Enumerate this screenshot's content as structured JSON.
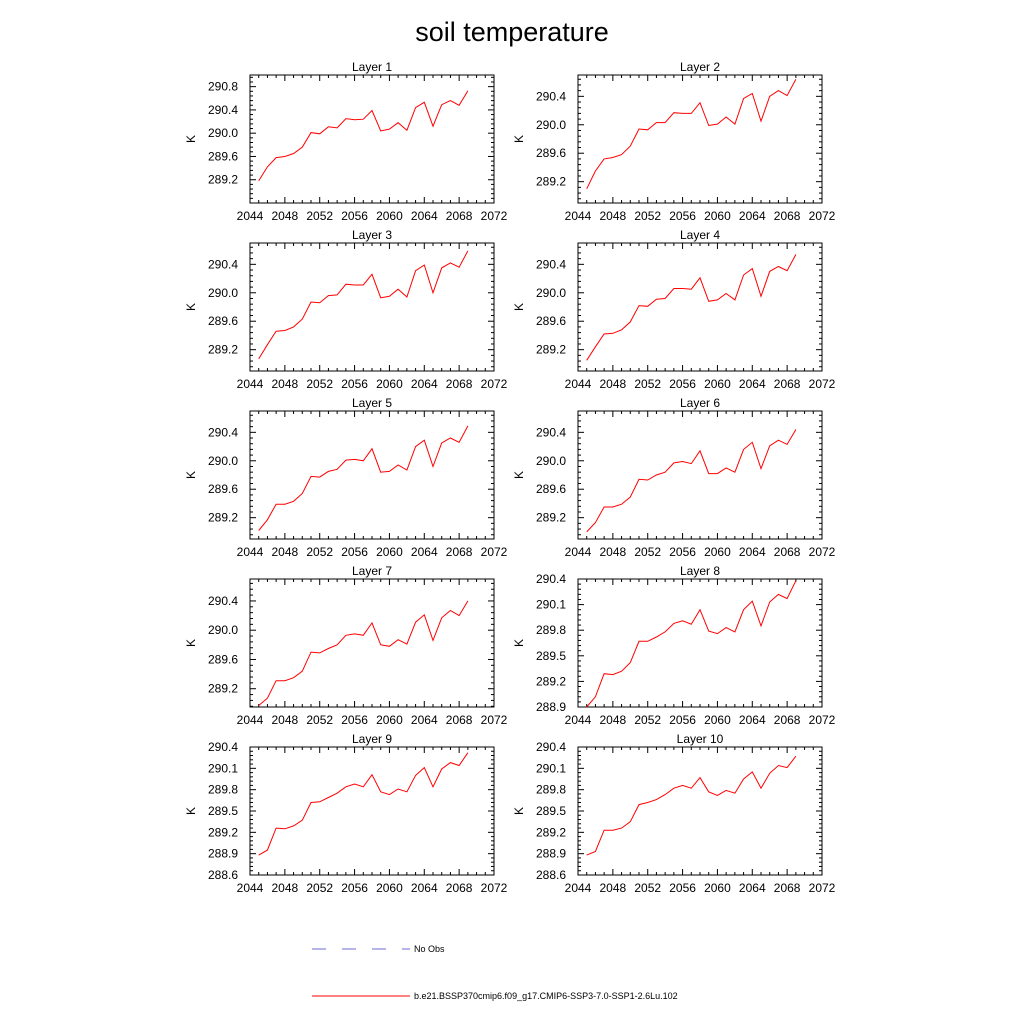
{
  "figure": {
    "title": "soil temperature",
    "legend": [
      {
        "label": "No Obs",
        "color": "#6b6bd6",
        "style": "dashed"
      },
      {
        "label": "b.e21.BSSP370cmip6.f09_g17.CMIP6-SSP3-7.0-SSP1-2.6Lu.102",
        "color": "#ff0000",
        "style": "solid"
      }
    ]
  },
  "chart_data": [
    {
      "type": "line",
      "title": "Layer 1",
      "ylabel": "K",
      "xlim": [
        2044,
        2072
      ],
      "xticks": [
        2044,
        2048,
        2052,
        2056,
        2060,
        2064,
        2068,
        2072
      ],
      "ylim": [
        288.8,
        291.0
      ],
      "yticks": [
        "289.2",
        "289.6",
        "290.0",
        "290.4",
        "290.8"
      ],
      "series": [
        {
          "color": "#ff0000",
          "x": [
            2045,
            2046,
            2047,
            2048,
            2049,
            2050,
            2051,
            2052,
            2053,
            2054,
            2055,
            2056,
            2057,
            2058,
            2059,
            2060,
            2061,
            2062,
            2063,
            2064,
            2065,
            2066,
            2067,
            2068,
            2069
          ],
          "y": [
            289.18,
            289.42,
            289.58,
            289.6,
            289.65,
            289.76,
            290.01,
            289.99,
            290.11,
            290.09,
            290.25,
            290.23,
            290.24,
            290.39,
            290.04,
            290.07,
            290.18,
            290.05,
            290.44,
            290.53,
            290.12,
            290.49,
            290.56,
            290.48,
            290.73
          ]
        }
      ]
    },
    {
      "type": "line",
      "title": "Layer 2",
      "ylabel": "K",
      "xlim": [
        2044,
        2072
      ],
      "xticks": [
        2044,
        2048,
        2052,
        2056,
        2060,
        2064,
        2068,
        2072
      ],
      "ylim": [
        288.9,
        290.7
      ],
      "yticks": [
        "289.2",
        "289.6",
        "290.0",
        "290.4"
      ],
      "series": [
        {
          "color": "#ff0000",
          "x": [
            2045,
            2046,
            2047,
            2048,
            2049,
            2050,
            2051,
            2052,
            2053,
            2054,
            2055,
            2056,
            2057,
            2058,
            2059,
            2060,
            2061,
            2062,
            2063,
            2064,
            2065,
            2066,
            2067,
            2068,
            2069
          ],
          "y": [
            289.1,
            289.35,
            289.52,
            289.54,
            289.58,
            289.7,
            289.94,
            289.93,
            290.03,
            290.03,
            290.17,
            290.16,
            290.16,
            290.31,
            289.99,
            290.01,
            290.11,
            290.01,
            290.37,
            290.44,
            290.05,
            290.4,
            290.48,
            290.41,
            290.64
          ]
        }
      ]
    },
    {
      "type": "line",
      "title": "Layer 3",
      "ylabel": "K",
      "xlim": [
        2044,
        2072
      ],
      "xticks": [
        2044,
        2048,
        2052,
        2056,
        2060,
        2064,
        2068,
        2072
      ],
      "ylim": [
        288.9,
        290.7
      ],
      "yticks": [
        "289.2",
        "289.6",
        "290.0",
        "290.4"
      ],
      "series": [
        {
          "color": "#ff0000",
          "x": [
            2045,
            2046,
            2047,
            2048,
            2049,
            2050,
            2051,
            2052,
            2053,
            2054,
            2055,
            2056,
            2057,
            2058,
            2059,
            2060,
            2061,
            2062,
            2063,
            2064,
            2065,
            2066,
            2067,
            2068,
            2069
          ],
          "y": [
            289.07,
            289.27,
            289.46,
            289.47,
            289.52,
            289.63,
            289.87,
            289.86,
            289.96,
            289.97,
            290.12,
            290.11,
            290.11,
            290.26,
            289.93,
            289.95,
            290.05,
            289.94,
            290.31,
            290.39,
            290.0,
            290.35,
            290.42,
            290.36,
            290.59
          ]
        }
      ]
    },
    {
      "type": "line",
      "title": "Layer 4",
      "ylabel": "K",
      "xlim": [
        2044,
        2072
      ],
      "xticks": [
        2044,
        2048,
        2052,
        2056,
        2060,
        2064,
        2068,
        2072
      ],
      "ylim": [
        288.9,
        290.7
      ],
      "yticks": [
        "289.2",
        "289.6",
        "290.0",
        "290.4"
      ],
      "series": [
        {
          "color": "#ff0000",
          "x": [
            2045,
            2046,
            2047,
            2048,
            2049,
            2050,
            2051,
            2052,
            2053,
            2054,
            2055,
            2056,
            2057,
            2058,
            2059,
            2060,
            2061,
            2062,
            2063,
            2064,
            2065,
            2066,
            2067,
            2068,
            2069
          ],
          "y": [
            289.05,
            289.24,
            289.42,
            289.43,
            289.48,
            289.59,
            289.82,
            289.81,
            289.91,
            289.92,
            290.06,
            290.06,
            290.05,
            290.21,
            289.88,
            289.9,
            289.99,
            289.9,
            290.25,
            290.34,
            289.95,
            290.3,
            290.37,
            290.31,
            290.54
          ]
        }
      ]
    },
    {
      "type": "line",
      "title": "Layer 5",
      "ylabel": "K",
      "xlim": [
        2044,
        2072
      ],
      "xticks": [
        2044,
        2048,
        2052,
        2056,
        2060,
        2064,
        2068,
        2072
      ],
      "ylim": [
        288.9,
        290.7
      ],
      "yticks": [
        "289.2",
        "289.6",
        "290.0",
        "290.4"
      ],
      "series": [
        {
          "color": "#ff0000",
          "x": [
            2045,
            2046,
            2047,
            2048,
            2049,
            2050,
            2051,
            2052,
            2053,
            2054,
            2055,
            2056,
            2057,
            2058,
            2059,
            2060,
            2061,
            2062,
            2063,
            2064,
            2065,
            2066,
            2067,
            2068,
            2069
          ],
          "y": [
            289.02,
            289.17,
            289.39,
            289.39,
            289.43,
            289.54,
            289.78,
            289.77,
            289.85,
            289.88,
            290.01,
            290.02,
            290.0,
            290.17,
            289.84,
            289.85,
            289.94,
            289.87,
            290.2,
            290.29,
            289.92,
            290.25,
            290.32,
            290.26,
            290.49
          ]
        }
      ]
    },
    {
      "type": "line",
      "title": "Layer 6",
      "ylabel": "K",
      "xlim": [
        2044,
        2072
      ],
      "xticks": [
        2044,
        2048,
        2052,
        2056,
        2060,
        2064,
        2068,
        2072
      ],
      "ylim": [
        288.9,
        290.7
      ],
      "yticks": [
        "289.2",
        "289.6",
        "290.0",
        "290.4"
      ],
      "series": [
        {
          "color": "#ff0000",
          "x": [
            2045,
            2046,
            2047,
            2048,
            2049,
            2050,
            2051,
            2052,
            2053,
            2054,
            2055,
            2056,
            2057,
            2058,
            2059,
            2060,
            2061,
            2062,
            2063,
            2064,
            2065,
            2066,
            2067,
            2068,
            2069
          ],
          "y": [
            289.0,
            289.13,
            289.35,
            289.35,
            289.39,
            289.49,
            289.74,
            289.73,
            289.8,
            289.84,
            289.97,
            289.99,
            289.96,
            290.14,
            289.82,
            289.82,
            289.9,
            289.84,
            290.16,
            290.26,
            289.89,
            290.21,
            290.29,
            290.23,
            290.44
          ]
        }
      ]
    },
    {
      "type": "line",
      "title": "Layer 7",
      "ylabel": "K",
      "xlim": [
        2044,
        2072
      ],
      "xticks": [
        2044,
        2048,
        2052,
        2056,
        2060,
        2064,
        2068,
        2072
      ],
      "ylim": [
        288.95,
        290.7
      ],
      "yticks": [
        "289.2",
        "289.6",
        "290.0",
        "290.4"
      ],
      "series": [
        {
          "color": "#ff0000",
          "x": [
            2045,
            2046,
            2047,
            2048,
            2049,
            2050,
            2051,
            2052,
            2053,
            2054,
            2055,
            2056,
            2057,
            2058,
            2059,
            2060,
            2061,
            2062,
            2063,
            2064,
            2065,
            2066,
            2067,
            2068,
            2069
          ],
          "y": [
            288.97,
            289.07,
            289.31,
            289.31,
            289.35,
            289.44,
            289.7,
            289.69,
            289.75,
            289.8,
            289.93,
            289.95,
            289.93,
            290.1,
            289.8,
            289.78,
            289.87,
            289.81,
            290.11,
            290.21,
            289.86,
            290.17,
            290.27,
            290.2,
            290.4
          ]
        }
      ]
    },
    {
      "type": "line",
      "title": "Layer 8",
      "ylabel": "K",
      "xlim": [
        2044,
        2072
      ],
      "xticks": [
        2044,
        2048,
        2052,
        2056,
        2060,
        2064,
        2068,
        2072
      ],
      "ylim": [
        288.9,
        290.4
      ],
      "yticks": [
        "288.9",
        "289.2",
        "289.5",
        "289.8",
        "290.1",
        "290.4"
      ],
      "series": [
        {
          "color": "#ff0000",
          "x": [
            2045,
            2046,
            2047,
            2048,
            2049,
            2050,
            2051,
            2052,
            2053,
            2054,
            2055,
            2056,
            2057,
            2058,
            2059,
            2060,
            2061,
            2062,
            2063,
            2064,
            2065,
            2066,
            2067,
            2068,
            2069
          ],
          "y": [
            288.9,
            289.02,
            289.29,
            289.28,
            289.32,
            289.42,
            289.67,
            289.67,
            289.72,
            289.78,
            289.88,
            289.91,
            289.87,
            290.04,
            289.79,
            289.76,
            289.83,
            289.78,
            290.04,
            290.14,
            289.85,
            290.13,
            290.22,
            290.17,
            290.38
          ]
        }
      ]
    },
    {
      "type": "line",
      "title": "Layer 9",
      "ylabel": "K",
      "xlim": [
        2044,
        2072
      ],
      "xticks": [
        2044,
        2048,
        2052,
        2056,
        2060,
        2064,
        2068,
        2072
      ],
      "ylim": [
        288.6,
        290.4
      ],
      "yticks": [
        "288.6",
        "288.9",
        "289.2",
        "289.5",
        "289.8",
        "290.1",
        "290.4"
      ],
      "series": [
        {
          "color": "#ff0000",
          "x": [
            2045,
            2046,
            2047,
            2048,
            2049,
            2050,
            2051,
            2052,
            2053,
            2054,
            2055,
            2056,
            2057,
            2058,
            2059,
            2060,
            2061,
            2062,
            2063,
            2064,
            2065,
            2066,
            2067,
            2068,
            2069
          ],
          "y": [
            288.88,
            288.95,
            289.26,
            289.25,
            289.29,
            289.37,
            289.62,
            289.63,
            289.69,
            289.75,
            289.84,
            289.88,
            289.84,
            290.01,
            289.77,
            289.73,
            289.81,
            289.77,
            290.0,
            290.11,
            289.84,
            290.09,
            290.18,
            290.14,
            290.32
          ]
        }
      ]
    },
    {
      "type": "line",
      "title": "Layer 10",
      "ylabel": "K",
      "xlim": [
        2044,
        2072
      ],
      "xticks": [
        2044,
        2048,
        2052,
        2056,
        2060,
        2064,
        2068,
        2072
      ],
      "ylim": [
        288.6,
        290.4
      ],
      "yticks": [
        "288.6",
        "288.9",
        "289.2",
        "289.5",
        "289.8",
        "290.1",
        "290.4"
      ],
      "series": [
        {
          "color": "#ff0000",
          "x": [
            2045,
            2046,
            2047,
            2048,
            2049,
            2050,
            2051,
            2052,
            2053,
            2054,
            2055,
            2056,
            2057,
            2058,
            2059,
            2060,
            2061,
            2062,
            2063,
            2064,
            2065,
            2066,
            2067,
            2068,
            2069
          ],
          "y": [
            288.88,
            288.93,
            289.23,
            289.23,
            289.26,
            289.35,
            289.59,
            289.62,
            289.66,
            289.73,
            289.82,
            289.86,
            289.82,
            289.97,
            289.77,
            289.72,
            289.79,
            289.75,
            289.95,
            290.05,
            289.82,
            290.03,
            290.14,
            290.11,
            290.27
          ]
        }
      ]
    }
  ]
}
